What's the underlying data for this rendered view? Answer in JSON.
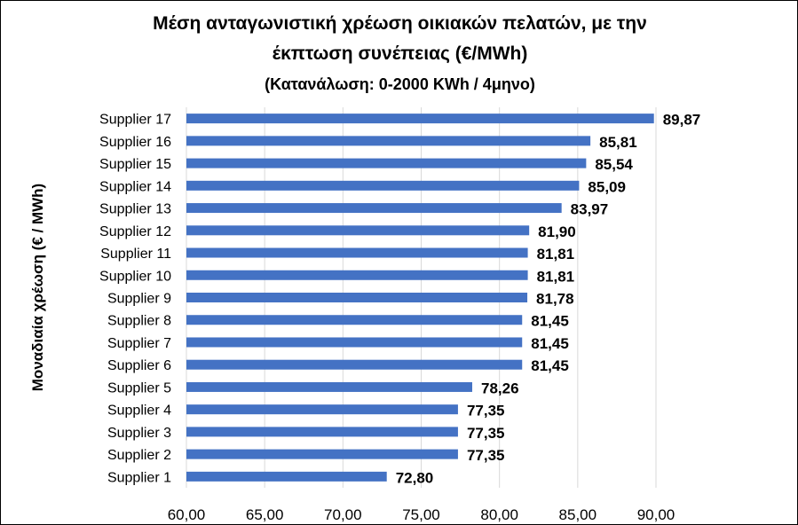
{
  "title_lines": [
    "Μέση ανταγωνιστική χρέωση οικιακών πελατών, με την",
    "έκπτωση συνέπειας  (€/MWh)",
    "(Κατανάλωση: 0-2000 KWh / 4μηνο)"
  ],
  "chart_data": {
    "type": "bar",
    "orientation": "horizontal",
    "ylabel": "Μοναδιαία χρέωση (€ / MWh)",
    "xlim": [
      60,
      90
    ],
    "x_ticks": [
      "60,00",
      "65,00",
      "70,00",
      "75,00",
      "80,00",
      "85,00",
      "90,00"
    ],
    "x_tick_values": [
      60,
      65,
      70,
      75,
      80,
      85,
      90
    ],
    "grid": "vertical",
    "bar_color": "#4472C4",
    "categories": [
      "Supplier 17",
      "Supplier 16",
      "Supplier 15",
      "Supplier 14",
      "Supplier 13",
      "Supplier 12",
      "Supplier 11",
      "Supplier 10",
      "Supplier 9",
      "Supplier 8",
      "Supplier 7",
      "Supplier 6",
      "Supplier 5",
      "Supplier 4",
      "Supplier 3",
      "Supplier 2",
      "Supplier 1"
    ],
    "values": [
      89.87,
      85.81,
      85.54,
      85.09,
      83.97,
      81.9,
      81.81,
      81.81,
      81.78,
      81.45,
      81.45,
      81.45,
      78.26,
      77.35,
      77.35,
      77.35,
      72.8
    ],
    "value_labels": [
      "89,87",
      "85,81",
      "85,54",
      "85,09",
      "83,97",
      "81,90",
      "81,81",
      "81,81",
      "81,78",
      "81,45",
      "81,45",
      "81,45",
      "78,26",
      "77,35",
      "77,35",
      "77,35",
      "72,80"
    ]
  }
}
